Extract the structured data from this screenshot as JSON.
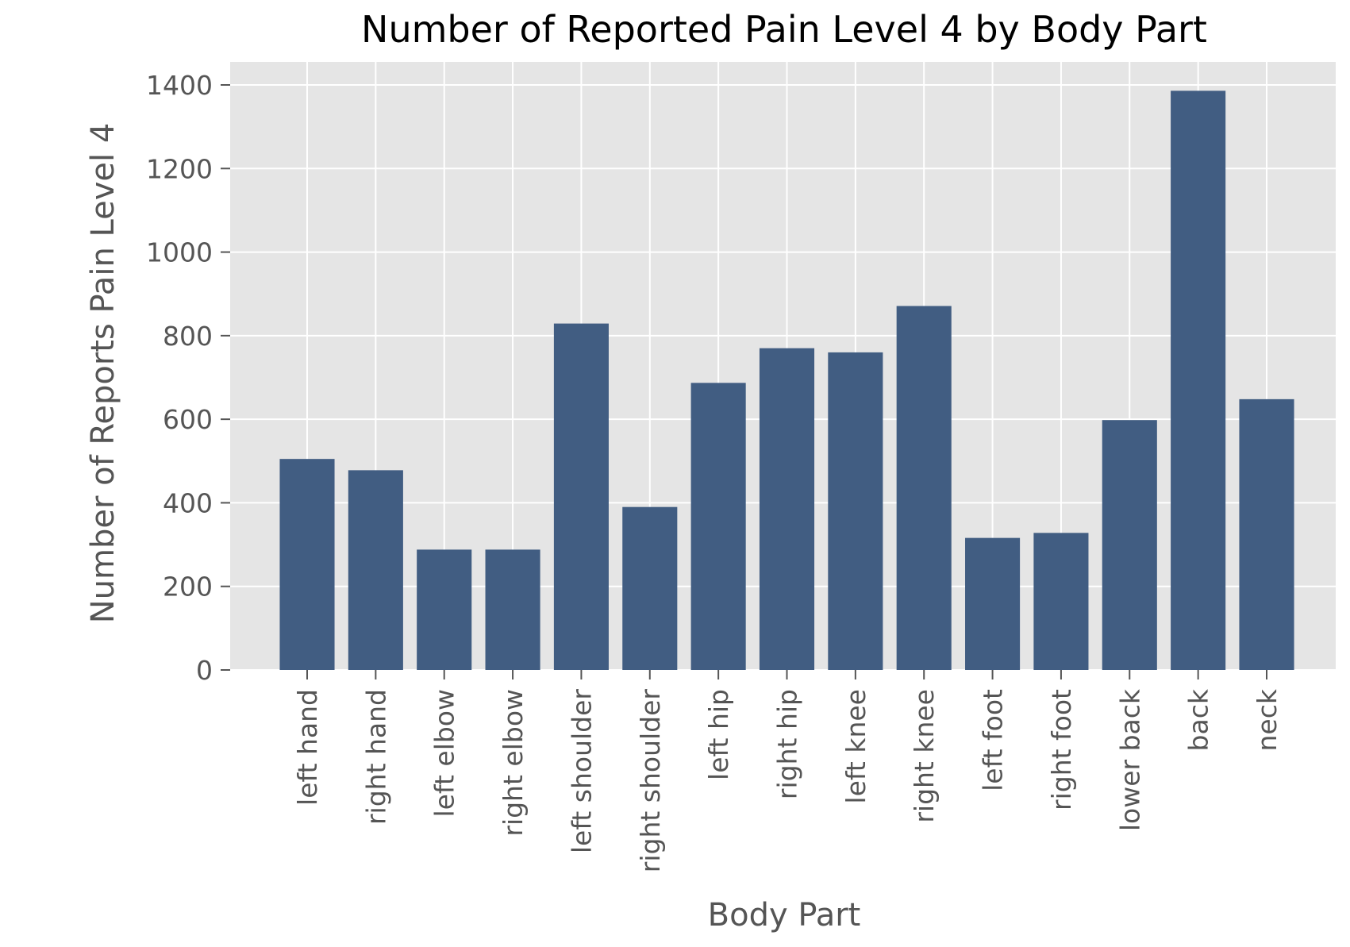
{
  "chart_data": {
    "type": "bar",
    "title": "Number of Reported Pain Level 4 by Body Part",
    "xlabel": "Body Part",
    "ylabel": "Number of Reports Pain Level 4",
    "categories": [
      "left hand",
      "right hand",
      "left elbow",
      "right elbow",
      "left shoulder",
      "right shoulder",
      "left hip",
      "right hip",
      "left knee",
      "right knee",
      "left foot",
      "right foot",
      "lower back",
      "back",
      "neck"
    ],
    "values": [
      505,
      478,
      288,
      288,
      829,
      390,
      687,
      770,
      760,
      871,
      316,
      328,
      598,
      1386,
      648
    ],
    "ylim": [
      0,
      1400
    ],
    "yticks": [
      0,
      200,
      400,
      600,
      800,
      1000,
      1200,
      1400
    ],
    "grid": true,
    "bar_color": "#3d5a80",
    "plot_background": "#e5e5e5",
    "grid_color": "#ffffff"
  }
}
